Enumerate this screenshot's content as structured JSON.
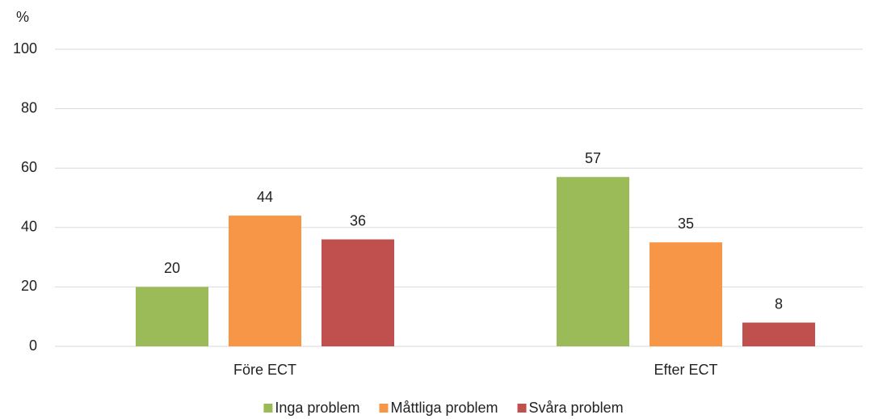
{
  "chart_data": {
    "type": "bar",
    "y_label": "%",
    "categories": [
      "Före ECT",
      "Efter ECT"
    ],
    "series": [
      {
        "name": "Inga problem",
        "color": "#9bbb59",
        "values": [
          20,
          57
        ]
      },
      {
        "name": "Måttliga problem",
        "color": "#f79646",
        "values": [
          44,
          35
        ]
      },
      {
        "name": "Svåra problem",
        "color": "#c0504d",
        "values": [
          36,
          8
        ]
      }
    ],
    "ylim": [
      0,
      100
    ],
    "yticks": [
      0,
      20,
      40,
      60,
      80,
      100
    ],
    "grid": true,
    "legend": "bottom"
  }
}
